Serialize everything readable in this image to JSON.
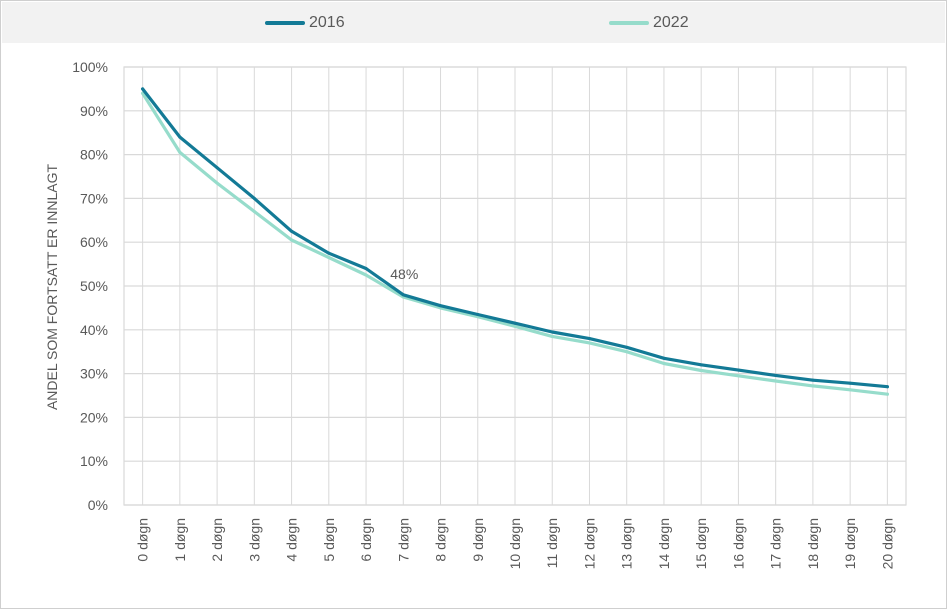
{
  "chart_data": {
    "type": "line",
    "categories": [
      "0 døgn",
      "1 døgn",
      "2 døgn",
      "3 døgn",
      "4 døgn",
      "5 døgn",
      "6 døgn",
      "7 døgn",
      "8 døgn",
      "9 døgn",
      "10 døgn",
      "11 døgn",
      "12 døgn",
      "13 døgn",
      "14 døgn",
      "15 døgn",
      "16 døgn",
      "17 døgn",
      "18 døgn",
      "19 døgn",
      "20 døgn"
    ],
    "series": [
      {
        "name": "2016",
        "color": "#137a96",
        "values": [
          95,
          84,
          77,
          70,
          62.5,
          57.5,
          54,
          48,
          45.5,
          43.5,
          41.5,
          39.5,
          38,
          36,
          33.5,
          32,
          30.8,
          29.6,
          28.5,
          27.8,
          27
        ]
      },
      {
        "name": "2022",
        "color": "#96dccb",
        "values": [
          94,
          80.5,
          73.5,
          67,
          60.5,
          56.5,
          52.5,
          47.5,
          45,
          43,
          40.8,
          38.5,
          37,
          35,
          32.3,
          30.7,
          29.5,
          28.3,
          27.2,
          26.3,
          25.3
        ]
      }
    ],
    "ylabel": "ANDEL SOM FORTSATT ER INNLAGT",
    "ylim": [
      0,
      100
    ],
    "yticks": [
      "0%",
      "10%",
      "20%",
      "30%",
      "40%",
      "50%",
      "60%",
      "70%",
      "80%",
      "90%",
      "100%"
    ],
    "annotation": {
      "text": "48%",
      "category": "7 døgn"
    },
    "grid": true,
    "legend_position": "top"
  }
}
